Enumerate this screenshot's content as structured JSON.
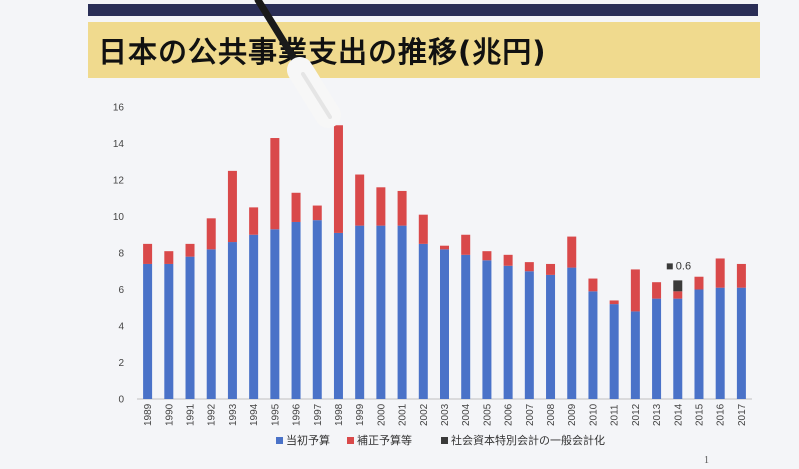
{
  "slide": {
    "title": "日本の公共事業支出の推移(兆円)",
    "page_number": "1"
  },
  "colors": {
    "initial": "#4a72c8",
    "supplementary": "#d9494a",
    "special": "#3a3a3a",
    "band": "#2a2e57",
    "title_bg": "#f0da8e"
  },
  "chart_data": {
    "type": "bar",
    "stacked": true,
    "categories": [
      "1989",
      "1990",
      "1991",
      "1992",
      "1993",
      "1994",
      "1995",
      "1996",
      "1997",
      "1998",
      "1999",
      "2000",
      "2001",
      "2002",
      "2003",
      "2004",
      "2005",
      "2006",
      "2007",
      "2008",
      "2009",
      "2010",
      "2011",
      "2012",
      "2013",
      "2014",
      "2015",
      "2016",
      "2017"
    ],
    "series": [
      {
        "name": "当初予算",
        "color": "#4a72c8",
        "values": [
          7.4,
          7.4,
          7.8,
          8.2,
          8.6,
          9.0,
          9.3,
          9.7,
          9.8,
          9.1,
          9.5,
          9.5,
          9.5,
          8.5,
          8.2,
          7.9,
          7.6,
          7.3,
          7.0,
          6.8,
          7.2,
          5.9,
          5.2,
          4.8,
          5.5,
          5.5,
          6.0,
          6.1,
          6.1
        ]
      },
      {
        "name": "補正予算等",
        "color": "#d9494a",
        "values": [
          1.1,
          0.7,
          0.7,
          1.7,
          3.9,
          1.5,
          5.0,
          1.6,
          0.8,
          5.9,
          2.8,
          2.1,
          1.9,
          1.6,
          0.2,
          1.1,
          0.5,
          0.6,
          0.5,
          0.6,
          1.7,
          0.7,
          0.2,
          2.3,
          0.9,
          0.4,
          0.7,
          1.6,
          1.3
        ]
      },
      {
        "name": "社会資本特別会計の一般会計化",
        "color": "#3a3a3a",
        "values": [
          0,
          0,
          0,
          0,
          0,
          0,
          0,
          0,
          0,
          0,
          0,
          0,
          0,
          0,
          0,
          0,
          0,
          0,
          0,
          0,
          0,
          0,
          0,
          0,
          0,
          0.6,
          0,
          0,
          0
        ]
      }
    ],
    "annotations": [
      {
        "category": "2014",
        "label": "0.6"
      }
    ],
    "yticks": [
      "0",
      "2",
      "4",
      "6",
      "8",
      "10",
      "12",
      "14",
      "16"
    ],
    "ylim": [
      0,
      16
    ],
    "grid": false,
    "legend_position": "bottom"
  }
}
